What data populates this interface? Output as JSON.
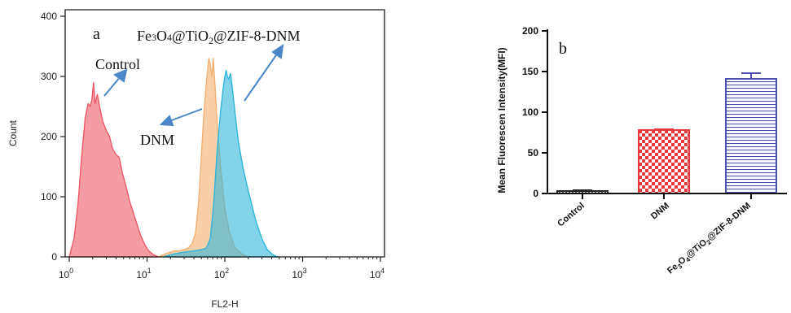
{
  "panel_a": {
    "panel_label": "a",
    "annotations": {
      "control": "Control",
      "dnm": "DNM",
      "fe_prefix": "Fe",
      "fe_sub1": "3",
      "fe_mid1": "O",
      "fe_sub2": "4",
      "fe_mid2": "@TiO",
      "fe_sub3": "2",
      "fe_suffix": "@ZIF-8-DNM"
    }
  },
  "panel_b": {
    "panel_label": "b",
    "xtick_fe": {
      "p1": "Fe",
      "s1": "3",
      "p2": "O",
      "s2": "4",
      "p3": "@TiO",
      "s3": "2",
      "p4": "@ZIF-8-DNM"
    }
  },
  "chart_data": [
    {
      "type": "area",
      "xlabel": "FL2-H",
      "ylabel": "Count",
      "xscale": "log",
      "xlim": [
        1,
        10000
      ],
      "ylim": [
        0,
        400
      ],
      "xticks": [
        {
          "value": 1,
          "base": "10",
          "exp": "0"
        },
        {
          "value": 10,
          "base": "10",
          "exp": "1"
        },
        {
          "value": 100,
          "base": "10",
          "exp": "2"
        },
        {
          "value": 1000,
          "base": "10",
          "exp": "3"
        },
        {
          "value": 10000,
          "base": "10",
          "exp": "4"
        }
      ],
      "yticks": [
        "0",
        "100",
        "200",
        "300",
        "400"
      ],
      "series": [
        {
          "name": "Control",
          "color": "#ee5a66",
          "points": [
            [
              1.0,
              0
            ],
            [
              1.15,
              30
            ],
            [
              1.3,
              90
            ],
            [
              1.45,
              170
            ],
            [
              1.6,
              230
            ],
            [
              1.75,
              255
            ],
            [
              1.85,
              250
            ],
            [
              1.95,
              260
            ],
            [
              2.05,
              290
            ],
            [
              2.15,
              255
            ],
            [
              2.3,
              270
            ],
            [
              2.5,
              245
            ],
            [
              2.7,
              225
            ],
            [
              3.0,
              210
            ],
            [
              3.3,
              200
            ],
            [
              3.6,
              180
            ],
            [
              4.0,
              170
            ],
            [
              4.4,
              165
            ],
            [
              4.8,
              140
            ],
            [
              5.3,
              120
            ],
            [
              5.9,
              95
            ],
            [
              6.6,
              75
            ],
            [
              7.4,
              55
            ],
            [
              8.3,
              35
            ],
            [
              9.4,
              20
            ],
            [
              10.5,
              10
            ],
            [
              12,
              4
            ],
            [
              14,
              0
            ]
          ]
        },
        {
          "name": "DNM",
          "color": "#f2b072",
          "points": [
            [
              14,
              0
            ],
            [
              18,
              6
            ],
            [
              22,
              10
            ],
            [
              26,
              10
            ],
            [
              30,
              12
            ],
            [
              34,
              15
            ],
            [
              38,
              22
            ],
            [
              42,
              40
            ],
            [
              46,
              90
            ],
            [
              50,
              170
            ],
            [
              54,
              240
            ],
            [
              58,
              290
            ],
            [
              62,
              330
            ],
            [
              65,
              320
            ],
            [
              68,
              300
            ],
            [
              71,
              330
            ],
            [
              75,
              280
            ],
            [
              80,
              220
            ],
            [
              88,
              150
            ],
            [
              100,
              80
            ],
            [
              115,
              40
            ],
            [
              135,
              15
            ],
            [
              165,
              5
            ],
            [
              200,
              0
            ]
          ]
        },
        {
          "name": "Fe3O4@TiO2@ZIF-8-DNM",
          "color": "#31b6da",
          "points": [
            [
              16,
              0
            ],
            [
              22,
              5
            ],
            [
              30,
              8
            ],
            [
              40,
              10
            ],
            [
              50,
              12
            ],
            [
              58,
              15
            ],
            [
              65,
              30
            ],
            [
              72,
              90
            ],
            [
              80,
              180
            ],
            [
              88,
              240
            ],
            [
              95,
              280
            ],
            [
              100,
              300
            ],
            [
              104,
              310
            ],
            [
              108,
              300
            ],
            [
              112,
              295
            ],
            [
              118,
              305
            ],
            [
              125,
              280
            ],
            [
              135,
              240
            ],
            [
              150,
              190
            ],
            [
              170,
              150
            ],
            [
              200,
              110
            ],
            [
              250,
              60
            ],
            [
              300,
              30
            ],
            [
              350,
              12
            ],
            [
              420,
              3
            ],
            [
              480,
              0
            ]
          ]
        }
      ]
    },
    {
      "type": "bar",
      "ylabel": "Mean Fluorescen Intensity(MFI)",
      "ylim": [
        0,
        200
      ],
      "yticks": [
        "0",
        "50",
        "100",
        "150",
        "200"
      ],
      "categories": [
        "Control",
        "DNM",
        "Fe3O4@TiO2@ZIF-8-DNM"
      ],
      "values": [
        3,
        78,
        141
      ],
      "errors": [
        1,
        1,
        7
      ],
      "colors": [
        "#222222",
        "#e8383a",
        "#4a4fb0"
      ]
    }
  ]
}
